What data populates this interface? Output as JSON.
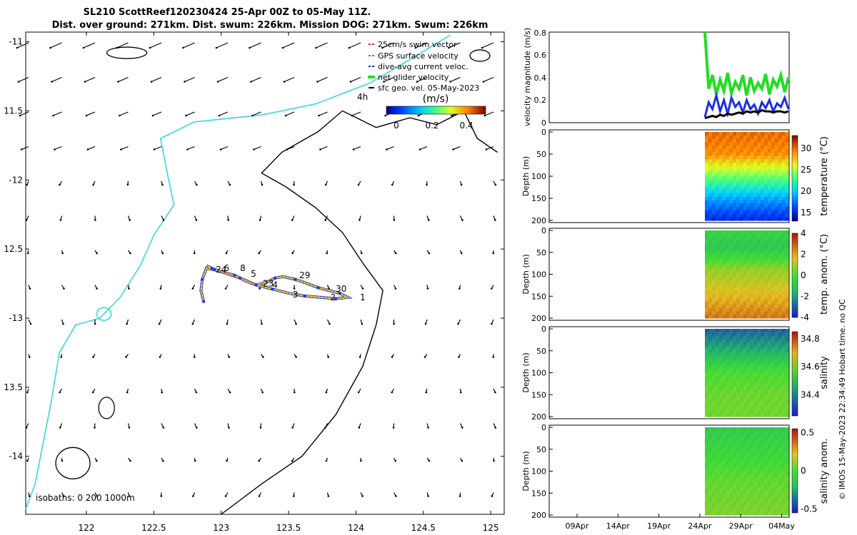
{
  "header": {
    "line1": "SL210 ScottReef120230424 25-Apr 00Z to 05-May 11Z.",
    "line2": "Dist. over ground: 271km. Dist. swum: 226km. Mission DOG: 271km. Swum: 226km"
  },
  "credit": "© IMOS 15-May-2023 22:34:49 Hobart time. no QC",
  "colors": {
    "coast": "#38d9dc",
    "isobath": "#000000",
    "net_velocity": "#22dd22",
    "dive_avg": "#1a2ee6",
    "sfc_geo": "#000000",
    "swim_vector": "#dd2222",
    "gps_velocity": "#cc33cc"
  },
  "chart_data": [
    {
      "id": "map",
      "type": "scatter",
      "title": "SL210 glider track with surface geostrophic velocity",
      "xlim": [
        121.55,
        125.1
      ],
      "ylim": [
        -14.42,
        -10.93
      ],
      "xticks": [
        122,
        122.5,
        123,
        123.5,
        124,
        124.5,
        125
      ],
      "xtick_labels": [
        "122",
        "122.5",
        "123",
        "123.5",
        "124",
        "124.5",
        "125"
      ],
      "yticks": [
        -11,
        -11.5,
        -12,
        -12.5,
        -13,
        -13.5,
        -14
      ],
      "ytick_labels": [
        "-11",
        "11.5",
        "-12",
        "12.5",
        "-13",
        "13.5",
        "-14"
      ],
      "legend": [
        {
          "label": "25cm/s swim vector",
          "key": "swim_vector"
        },
        {
          "label": "GPS surface velocity",
          "key": "gps_velocity"
        },
        {
          "label": "dive-avg current veloc.",
          "key": "dive_avg"
        },
        {
          "label": "net glider velocity",
          "key": "net_velocity"
        },
        {
          "label": "sfc geo. vel. 05-May-2023",
          "key": "sfc_geo"
        }
      ],
      "legend_position": "top-right",
      "colorbar": {
        "title": "(m/s)",
        "prefix": "4h",
        "ticks": [
          "0",
          "0.2",
          "0.4"
        ],
        "range": [
          0,
          0.5
        ]
      },
      "isobath_note": "isobaths: 0   200  1000m",
      "track": [
        [
          122.87,
          -12.88
        ],
        [
          122.85,
          -12.8
        ],
        [
          122.86,
          -12.72
        ],
        [
          122.89,
          -12.64
        ],
        [
          122.95,
          -12.65
        ],
        [
          123.02,
          -12.67
        ],
        [
          123.1,
          -12.69
        ],
        [
          123.18,
          -12.73
        ],
        [
          123.26,
          -12.76
        ],
        [
          123.34,
          -12.74
        ],
        [
          123.4,
          -12.71
        ],
        [
          123.46,
          -12.7
        ],
        [
          123.55,
          -12.72
        ],
        [
          123.64,
          -12.75
        ],
        [
          123.72,
          -12.78
        ],
        [
          123.8,
          -12.8
        ],
        [
          123.88,
          -12.82
        ],
        [
          123.94,
          -12.85
        ],
        [
          123.85,
          -12.86
        ],
        [
          123.74,
          -12.85
        ],
        [
          123.62,
          -12.84
        ],
        [
          123.5,
          -12.82
        ],
        [
          123.38,
          -12.79
        ],
        [
          123.26,
          -12.76
        ],
        [
          123.14,
          -12.71
        ],
        [
          123.02,
          -12.67
        ],
        [
          122.93,
          -12.64
        ],
        [
          122.89,
          -12.62
        ]
      ],
      "waypoint_labels": [
        {
          "lon": 122.96,
          "lat": -12.67,
          "text": "24"
        },
        {
          "lon": 123.02,
          "lat": -12.66,
          "text": "6"
        },
        {
          "lon": 123.14,
          "lat": -12.66,
          "text": "8"
        },
        {
          "lon": 123.22,
          "lat": -12.7,
          "text": "5"
        },
        {
          "lon": 123.31,
          "lat": -12.77,
          "text": "23"
        },
        {
          "lon": 123.38,
          "lat": -12.78,
          "text": "4"
        },
        {
          "lon": 123.58,
          "lat": -12.71,
          "text": "29"
        },
        {
          "lon": 123.53,
          "lat": -12.85,
          "text": "3"
        },
        {
          "lon": 123.85,
          "lat": -12.81,
          "text": "30"
        },
        {
          "lon": 123.81,
          "lat": -12.87,
          "text": "2"
        },
        {
          "lon": 124.03,
          "lat": -12.87,
          "text": "1"
        }
      ],
      "coastline_200m": [
        [
          121.55,
          -14.38
        ],
        [
          121.62,
          -14.2
        ],
        [
          121.68,
          -13.9
        ],
        [
          121.74,
          -13.6
        ],
        [
          121.8,
          -13.25
        ],
        [
          121.92,
          -13.05
        ],
        [
          122.1,
          -13.0
        ],
        [
          122.25,
          -12.85
        ],
        [
          122.4,
          -12.62
        ],
        [
          122.5,
          -12.4
        ],
        [
          122.65,
          -12.18
        ],
        [
          122.6,
          -11.95
        ],
        [
          122.55,
          -11.7
        ],
        [
          122.8,
          -11.58
        ],
        [
          123.3,
          -11.53
        ],
        [
          123.7,
          -11.45
        ],
        [
          124.1,
          -11.3
        ],
        [
          124.45,
          -11.1
        ],
        [
          124.7,
          -10.95
        ]
      ],
      "isobath_1000m": [
        [
          123.0,
          -14.42
        ],
        [
          123.3,
          -14.2
        ],
        [
          123.6,
          -14.0
        ],
        [
          123.85,
          -13.7
        ],
        [
          124.05,
          -13.35
        ],
        [
          124.15,
          -13.05
        ],
        [
          124.2,
          -12.8
        ],
        [
          124.05,
          -12.6
        ],
        [
          123.9,
          -12.38
        ],
        [
          123.7,
          -12.2
        ],
        [
          123.48,
          -12.05
        ],
        [
          123.3,
          -11.95
        ],
        [
          123.45,
          -11.8
        ],
        [
          123.72,
          -11.65
        ],
        [
          123.9,
          -11.5
        ],
        [
          124.15,
          -11.62
        ],
        [
          124.4,
          -11.55
        ],
        [
          124.6,
          -11.6
        ],
        [
          124.8,
          -11.5
        ],
        [
          124.9,
          -11.7
        ],
        [
          125.05,
          -11.8
        ]
      ]
    },
    {
      "id": "velocity",
      "type": "line",
      "ylabel": "velocity magnitude (m/s)",
      "ylim": [
        0,
        0.8
      ],
      "yticks": [
        "0",
        "0.2",
        "0.4",
        "0.6",
        "0.8"
      ],
      "series": [
        {
          "name": "net glider velocity",
          "color_key": "net_velocity",
          "values": [
            0.8,
            0.3,
            0.42,
            0.25,
            0.38,
            0.28,
            0.44,
            0.26,
            0.36,
            0.3,
            0.42,
            0.24,
            0.4,
            0.28,
            0.35,
            0.3,
            0.43,
            0.25,
            0.38,
            0.32,
            0.42,
            0.27,
            0.4
          ]
        },
        {
          "name": "dive-avg current veloc.",
          "color_key": "dive_avg",
          "values": [
            0.05,
            0.18,
            0.12,
            0.24,
            0.1,
            0.2,
            0.08,
            0.22,
            0.14,
            0.18,
            0.09,
            0.2,
            0.12,
            0.16,
            0.08,
            0.18,
            0.13,
            0.2,
            0.1,
            0.17,
            0.14,
            0.22,
            0.12
          ]
        },
        {
          "name": "sfc geo. vel.",
          "color_key": "sfc_geo",
          "values": [
            0.04,
            0.05,
            0.06,
            0.05,
            0.07,
            0.06,
            0.08,
            0.07,
            0.08,
            0.09,
            0.08,
            0.1,
            0.09,
            0.1,
            0.09,
            0.11,
            0.1,
            0.1,
            0.09,
            0.1,
            0.1,
            0.09,
            0.1
          ]
        }
      ]
    },
    {
      "id": "temperature",
      "type": "heatmap",
      "ylabel": "Depth (m)",
      "ylim": [
        0,
        200
      ],
      "yticks": [
        "0",
        "50",
        "100",
        "150",
        "200"
      ],
      "colorbar_label": "temperature (°C)",
      "colorbar_range": [
        13,
        33
      ],
      "colorbar_ticks": [
        "30",
        "25",
        "20",
        "15"
      ],
      "profile": [
        {
          "depth": 0,
          "value": 30
        },
        {
          "depth": 50,
          "value": 29
        },
        {
          "depth": 90,
          "value": 25
        },
        {
          "depth": 130,
          "value": 21
        },
        {
          "depth": 160,
          "value": 18
        },
        {
          "depth": 200,
          "value": 15
        }
      ]
    },
    {
      "id": "temp_anomaly",
      "type": "heatmap",
      "ylabel": "Depth (m)",
      "ylim": [
        0,
        200
      ],
      "yticks": [
        "0",
        "50",
        "100",
        "150",
        "200"
      ],
      "colorbar_label": "temp. anom. (°C)",
      "colorbar_range": [
        -4,
        4
      ],
      "colorbar_ticks": [
        "4",
        "2",
        "0",
        "-2",
        "-4"
      ],
      "profile": [
        {
          "depth": 0,
          "value": -0.5
        },
        {
          "depth": 40,
          "value": -1.0
        },
        {
          "depth": 90,
          "value": 0.8
        },
        {
          "depth": 140,
          "value": 1.5
        },
        {
          "depth": 200,
          "value": 2.6
        }
      ]
    },
    {
      "id": "salinity",
      "type": "heatmap",
      "ylabel": "Depth (m)",
      "ylim": [
        0,
        200
      ],
      "yticks": [
        "0",
        "50",
        "100",
        "150",
        "200"
      ],
      "colorbar_label": "salinity",
      "colorbar_range": [
        34.25,
        34.85
      ],
      "colorbar_ticks": [
        "34.8",
        "34.6",
        "34.4"
      ],
      "profile": [
        {
          "depth": 0,
          "value": 34.33
        },
        {
          "depth": 50,
          "value": 34.42
        },
        {
          "depth": 100,
          "value": 34.55
        },
        {
          "depth": 150,
          "value": 34.58
        },
        {
          "depth": 200,
          "value": 34.58
        }
      ]
    },
    {
      "id": "salinity_anomaly",
      "type": "heatmap",
      "ylabel": "Depth (m)",
      "ylim": [
        0,
        200
      ],
      "yticks": [
        "0",
        "50",
        "100",
        "150",
        "200"
      ],
      "colorbar_label": "salinity anom.",
      "colorbar_range": [
        -0.55,
        0.55
      ],
      "colorbar_ticks": [
        "0.5",
        "0",
        "-0.5"
      ],
      "xlabels": [
        "09Apr",
        "14Apr",
        "19Apr",
        "24Apr",
        "29Apr",
        "04May"
      ],
      "profile": [
        {
          "depth": 0,
          "value": -0.12
        },
        {
          "depth": 60,
          "value": -0.05
        },
        {
          "depth": 120,
          "value": 0.04
        },
        {
          "depth": 200,
          "value": 0.08
        }
      ]
    }
  ]
}
